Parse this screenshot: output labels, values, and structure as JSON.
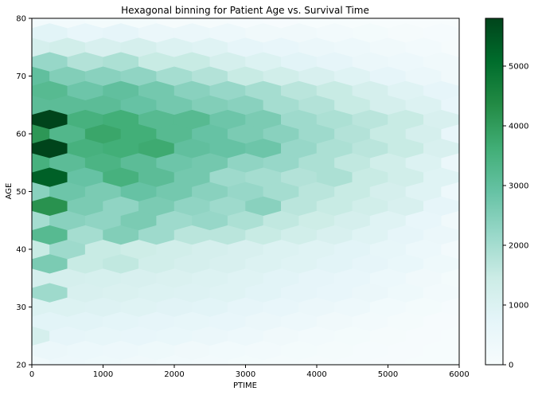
{
  "chart_data": {
    "type": "heatmap",
    "subtype": "hexbin",
    "title": "Hexagonal binning for Patient Age vs. Survival Time",
    "xlabel": "PTIME",
    "ylabel": "AGE",
    "xlim": [
      0,
      6000
    ],
    "ylim": [
      20,
      80
    ],
    "xticks": [
      0,
      1000,
      2000,
      3000,
      4000,
      5000,
      6000
    ],
    "yticks": [
      20,
      30,
      40,
      50,
      60,
      70,
      80
    ],
    "colorbar": {
      "min": 0,
      "max": 5800,
      "ticks": [
        0,
        1000,
        2000,
        3000,
        4000,
        5000
      ],
      "colormap": "BuGn",
      "colors": [
        "#f7fcfd",
        "#e5f5f9",
        "#ccece6",
        "#99d8c9",
        "#66c2a4",
        "#41ae76",
        "#238b45",
        "#006d2c",
        "#00441b"
      ]
    },
    "grid": false,
    "x_centers_even_rows": [
      0,
      500,
      1000,
      1500,
      2000,
      2500,
      3000,
      3500,
      4000,
      4500,
      5000,
      5500,
      6000
    ],
    "x_centers_odd_rows": [
      250,
      750,
      1250,
      1750,
      2250,
      2750,
      3250,
      3750,
      4250,
      4750,
      5250,
      5750
    ],
    "y_centers": [
      20,
      22.5,
      25,
      27.5,
      30,
      32.5,
      35,
      37.5,
      40,
      42.5,
      45,
      47.5,
      50,
      52.5,
      55,
      57.5,
      60,
      62.5,
      65,
      67.5,
      70,
      72.5,
      75,
      77.5,
      80
    ],
    "counts": [
      [
        300,
        400,
        350,
        300,
        250,
        200,
        150,
        120,
        100,
        80,
        60,
        40,
        30
      ],
      [
        500,
        450,
        400,
        350,
        300,
        250,
        200,
        150,
        120,
        90,
        60,
        40
      ],
      [
        1200,
        700,
        650,
        600,
        550,
        500,
        400,
        300,
        200,
        150,
        100,
        60,
        40
      ],
      [
        800,
        800,
        750,
        700,
        650,
        600,
        500,
        400,
        300,
        200,
        120,
        60
      ],
      [
        1000,
        1000,
        950,
        900,
        850,
        800,
        700,
        600,
        500,
        400,
        250,
        150,
        80
      ],
      [
        2100,
        1100,
        1050,
        1000,
        950,
        900,
        800,
        700,
        600,
        500,
        350,
        200
      ],
      [
        1200,
        1200,
        1150,
        1100,
        1050,
        1000,
        900,
        800,
        700,
        600,
        450,
        300,
        150
      ],
      [
        2600,
        1500,
        1600,
        1300,
        1200,
        1100,
        1000,
        900,
        800,
        700,
        550,
        350
      ],
      [
        1500,
        2100,
        1500,
        1400,
        1300,
        1200,
        1100,
        1000,
        900,
        800,
        650,
        450,
        200
      ],
      [
        3200,
        2000,
        2500,
        2100,
        1700,
        1700,
        1500,
        1300,
        1100,
        900,
        700,
        500
      ],
      [
        2000,
        2400,
        2300,
        2600,
        2100,
        2200,
        1900,
        1600,
        1400,
        1200,
        900,
        600,
        300
      ],
      [
        4200,
        2600,
        2300,
        2600,
        2300,
        2100,
        2400,
        1700,
        1500,
        1300,
        1100,
        700
      ],
      [
        2400,
        2800,
        2600,
        2900,
        2700,
        2400,
        2200,
        2000,
        1700,
        1500,
        1200,
        900,
        400
      ],
      [
        5300,
        2900,
        3500,
        3100,
        2700,
        2100,
        2000,
        1800,
        1900,
        1500,
        1300,
        900
      ],
      [
        3500,
        3100,
        3400,
        3100,
        2800,
        2700,
        2300,
        2200,
        1900,
        1600,
        1300,
        1000,
        500
      ],
      [
        5800,
        3500,
        3600,
        3700,
        3000,
        2900,
        2800,
        2200,
        1900,
        1700,
        1500,
        1100
      ],
      [
        4100,
        3300,
        3800,
        3600,
        3200,
        2900,
        2600,
        2400,
        2100,
        1800,
        1500,
        1200,
        600
      ],
      [
        5800,
        3500,
        3600,
        3200,
        3200,
        2800,
        2600,
        2100,
        1900,
        1700,
        1500,
        1100
      ],
      [
        3100,
        3100,
        3100,
        2900,
        2700,
        2500,
        2400,
        2000,
        1800,
        1500,
        1200,
        1000,
        600
      ],
      [
        3200,
        2800,
        3000,
        2700,
        2400,
        2200,
        2000,
        1700,
        1500,
        1200,
        900,
        700
      ],
      [
        3000,
        2500,
        2400,
        2300,
        2000,
        1800,
        1500,
        1300,
        1100,
        900,
        700,
        500,
        300
      ],
      [
        2200,
        1800,
        1900,
        1500,
        1500,
        1200,
        1000,
        800,
        700,
        500,
        400,
        300
      ],
      [
        1200,
        1300,
        1100,
        1200,
        1000,
        900,
        700,
        600,
        500,
        400,
        300,
        200,
        100
      ],
      [
        800,
        600,
        700,
        500,
        500,
        400,
        300,
        300,
        200,
        150,
        100,
        80
      ],
      [
        200,
        200,
        150,
        150,
        100,
        100,
        80,
        60,
        40,
        30,
        20,
        10,
        5
      ]
    ]
  }
}
